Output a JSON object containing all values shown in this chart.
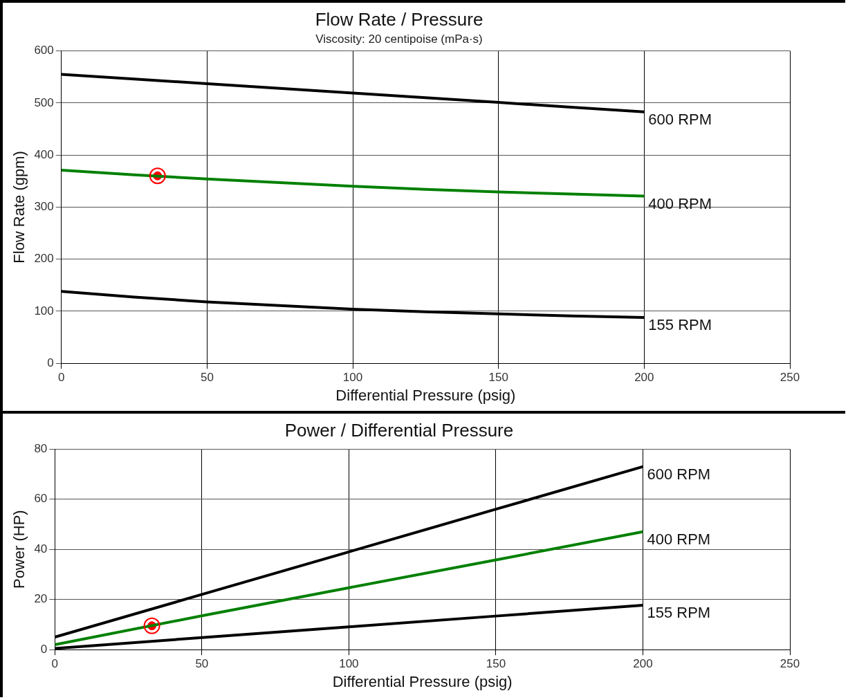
{
  "chart_data": [
    {
      "type": "line",
      "title": "Flow Rate / Pressure",
      "subtitle": "Viscosity: 20 centipoise (mPa·s)",
      "xlabel": "Differential Pressure (psig)",
      "ylabel": "Flow Rate (gpm)",
      "xlim": [
        0,
        250
      ],
      "xticks": [
        0,
        50,
        100,
        150,
        200,
        250
      ],
      "ylim": [
        0,
        600
      ],
      "yticks": [
        0,
        100,
        200,
        300,
        400,
        500,
        600
      ],
      "grid": true,
      "series": [
        {
          "name": "600 RPM",
          "color": "#000000",
          "x": [
            0,
            25,
            50,
            75,
            100,
            125,
            150,
            175,
            200
          ],
          "values": [
            555,
            546,
            537,
            528,
            519,
            510,
            501,
            492,
            483
          ]
        },
        {
          "name": "400 RPM",
          "color": "#008000",
          "x": [
            0,
            25,
            50,
            75,
            100,
            125,
            150,
            175,
            200
          ],
          "values": [
            371,
            362,
            354,
            347,
            340,
            334,
            329,
            325,
            321
          ]
        },
        {
          "name": "155 RPM",
          "color": "#000000",
          "x": [
            0,
            25,
            50,
            75,
            100,
            125,
            150,
            175,
            200
          ],
          "values": [
            138,
            127,
            118,
            111,
            104,
            99,
            95,
            91,
            88
          ]
        },
        {
          "type": "scatter",
          "color": "#ff0000",
          "marker": "circle",
          "x": [
            33
          ],
          "values": [
            360
          ]
        }
      ]
    },
    {
      "type": "line",
      "title": "Power / Differential Pressure",
      "xlabel": "Differential Pressure (psig)",
      "ylabel": "Power (HP)",
      "xlim": [
        0,
        250
      ],
      "xticks": [
        0,
        50,
        100,
        150,
        200,
        250
      ],
      "ylim": [
        0,
        80
      ],
      "yticks": [
        0,
        20,
        40,
        60,
        80
      ],
      "grid": true,
      "series": [
        {
          "name": "600 RPM",
          "color": "#000000",
          "x": [
            0,
            50,
            100,
            150,
            200
          ],
          "values": [
            5,
            22,
            39,
            56,
            73
          ]
        },
        {
          "name": "400 RPM",
          "color": "#008000",
          "x": [
            0,
            50,
            100,
            150,
            200
          ],
          "values": [
            2,
            13.5,
            24.7,
            35.8,
            47
          ]
        },
        {
          "name": "155 RPM",
          "color": "#000000",
          "x": [
            0,
            50,
            100,
            150,
            200
          ],
          "values": [
            0.5,
            4.8,
            9.1,
            13.4,
            17.7
          ]
        },
        {
          "type": "scatter",
          "color": "#ff0000",
          "marker": "circle",
          "x": [
            33
          ],
          "values": [
            9.5
          ]
        }
      ]
    }
  ]
}
